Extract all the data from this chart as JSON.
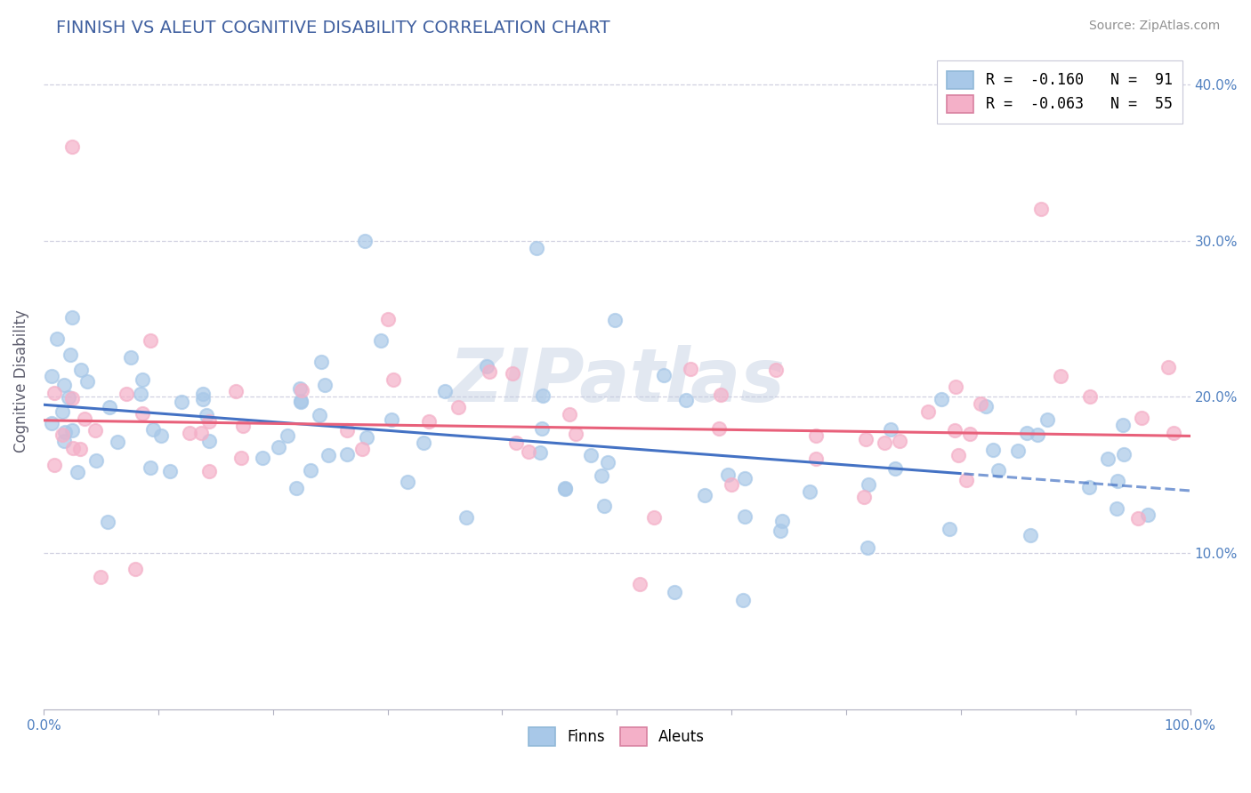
{
  "title": "FINNISH VS ALEUT COGNITIVE DISABILITY CORRELATION CHART",
  "source": "Source: ZipAtlas.com",
  "ylabel": "Cognitive Disability",
  "xlim": [
    0,
    100
  ],
  "ylim": [
    0,
    42
  ],
  "yticks": [
    10,
    20,
    30,
    40
  ],
  "ytick_labels_right": [
    "10.0%",
    "20.0%",
    "30.0%",
    "40.0%"
  ],
  "xtick_labels": [
    "0.0%",
    "",
    "",
    "",
    "",
    "",
    "",
    "",
    "",
    "",
    "100.0%"
  ],
  "legend_finn": "R =  -0.160   N =  91",
  "legend_aleut": "R =  -0.063   N =  55",
  "finn_color": "#a8c8e8",
  "aleut_color": "#f4b0c8",
  "finn_line_color": "#4472c4",
  "aleut_line_color": "#e8607a",
  "watermark": "ZIPatlas",
  "background_color": "#ffffff",
  "grid_color": "#d0d0e0",
  "finn_N": 91,
  "aleut_N": 55,
  "finn_line_x0": 0,
  "finn_line_y0": 19.5,
  "finn_line_x1": 100,
  "finn_line_y1": 14.0,
  "aleut_line_x0": 0,
  "aleut_line_y0": 18.5,
  "aleut_line_x1": 100,
  "aleut_line_y1": 17.5,
  "finn_solid_end": 80,
  "title_color": "#4060a0",
  "source_color": "#909090",
  "tick_color": "#5080c0",
  "ylabel_color": "#606070",
  "title_fontsize": 14,
  "axis_fontsize": 11,
  "legend_fontsize": 12
}
